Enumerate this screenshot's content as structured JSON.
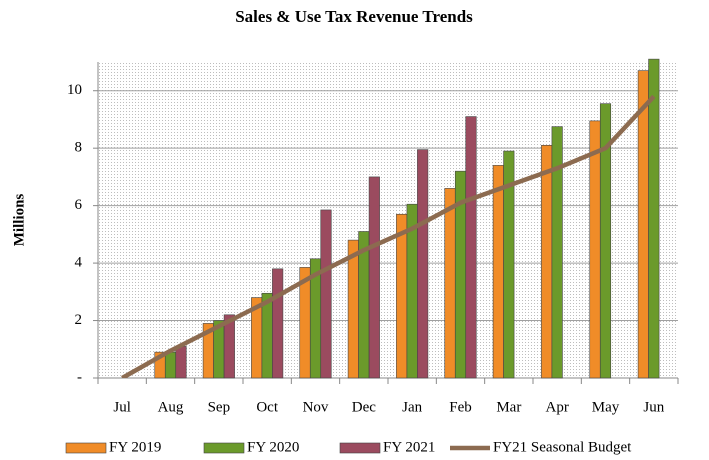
{
  "chart_data": {
    "type": "bar_line",
    "title": "Sales & Use Tax Revenue Trends",
    "y_label": "Millions",
    "categories": [
      "Jul",
      "Aug",
      "Sep",
      "Oct",
      "Nov",
      "Dec",
      "Jan",
      "Feb",
      "Mar",
      "Apr",
      "May",
      "Jun"
    ],
    "series": [
      {
        "name": "FY 2019",
        "color": "#f08c28",
        "kind": "bar",
        "values": [
          0,
          0.9,
          1.9,
          2.8,
          3.85,
          4.8,
          5.7,
          6.6,
          7.4,
          8.1,
          8.95,
          10.7
        ]
      },
      {
        "name": "FY 2020",
        "color": "#6b9a2b",
        "kind": "bar",
        "values": [
          0,
          0.9,
          2.0,
          2.95,
          4.15,
          5.1,
          6.05,
          7.2,
          7.9,
          8.75,
          9.55,
          11.1
        ]
      },
      {
        "name": "FY 2021",
        "color": "#9b4b5f",
        "kind": "bar",
        "values": [
          0,
          1.1,
          2.2,
          3.8,
          5.85,
          7.0,
          7.95,
          9.1,
          null,
          null,
          null,
          null
        ]
      },
      {
        "name": "FY21 Seasonal Budget",
        "color": "#8c6b50",
        "kind": "line",
        "values": [
          0,
          0.95,
          1.8,
          2.65,
          3.6,
          4.45,
          5.2,
          6.1,
          6.7,
          7.3,
          8.0,
          9.8
        ]
      }
    ],
    "ylim": [
      0,
      11
    ],
    "yticks": [
      {
        "value": 0,
        "label": "-"
      },
      2,
      4,
      6,
      8,
      10
    ],
    "grid": true,
    "legend": "bottom"
  }
}
